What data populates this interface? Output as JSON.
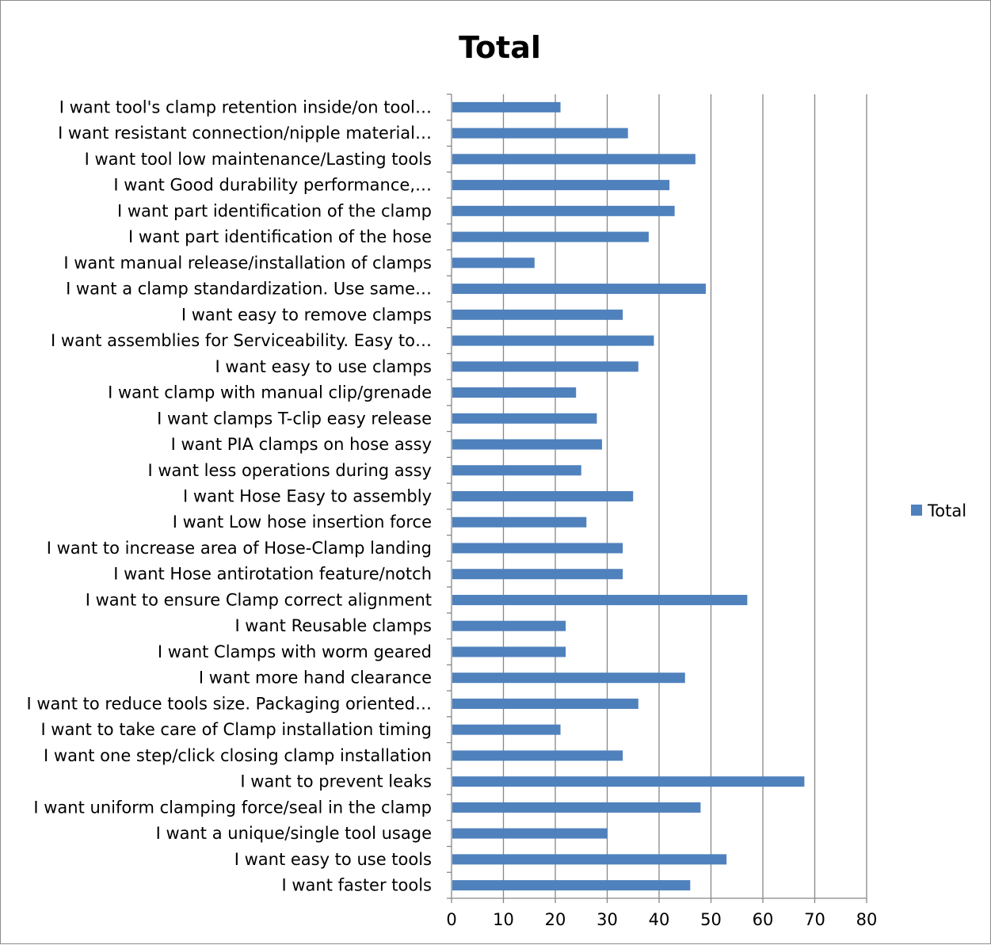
{
  "chart_data": {
    "type": "bar",
    "orientation": "horizontal",
    "title": "Total",
    "xlabel": "",
    "ylabel": "",
    "xlim": [
      0,
      80
    ],
    "x_ticks": [
      0,
      10,
      20,
      30,
      40,
      50,
      60,
      70,
      80
    ],
    "grid": "vertical",
    "legend_position": "right",
    "bar_color": "#4f81bd",
    "categories": [
      "I want tool's clamp retention inside/on tool…",
      "I want resistant connection/nipple material…",
      "I want tool low maintenance/Lasting tools",
      "I want Good durability performance,…",
      "I want part identification of the clamp",
      "I want part identification of the hose",
      "I want manual release/installation of clamps",
      "I want a clamp standardization. Use same…",
      "I want easy to remove clamps",
      "I want assemblies for Serviceability. Easy to…",
      "I want easy to use clamps",
      "I want clamp with manual clip/grenade",
      "I want clamps T-clip easy release",
      "I want PIA clamps on hose assy",
      "I want less operations during assy",
      "I want Hose Easy to assembly",
      "I want Low hose insertion force",
      "I want to increase area of Hose-Clamp landing",
      "I want Hose antirotation feature/notch",
      "I want to ensure Clamp correct alignment",
      "I want Reusable clamps",
      "I want Clamps with worm geared",
      "I want more hand clearance",
      "I want to reduce tools size. Packaging oriented…",
      "I want to take care of Clamp installation timing",
      "I want one step/click closing clamp installation",
      "I want to prevent leaks",
      "I want uniform clamping force/seal in the clamp",
      "I want a unique/single tool usage",
      "I want easy to use tools",
      "I want faster tools"
    ],
    "series": [
      {
        "name": "Total",
        "values": [
          21,
          34,
          47,
          42,
          43,
          38,
          16,
          49,
          33,
          39,
          36,
          24,
          28,
          29,
          25,
          35,
          26,
          33,
          33,
          57,
          22,
          22,
          45,
          36,
          21,
          33,
          68,
          48,
          30,
          53,
          46
        ]
      }
    ]
  }
}
